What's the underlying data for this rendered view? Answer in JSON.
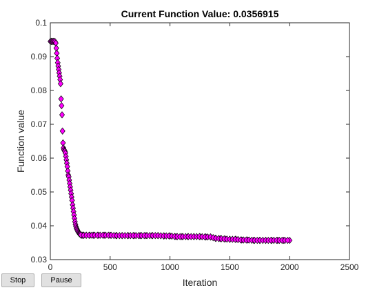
{
  "controls": {
    "stop_label": "Stop",
    "pause_label": "Pause"
  },
  "chart_data": {
    "type": "scatter",
    "title": "Current Function Value: 0.0356915",
    "xlabel": "Iteration",
    "ylabel": "Function value",
    "xlim": [
      0,
      2500
    ],
    "ylim": [
      0.03,
      0.1
    ],
    "xticks": [
      "0",
      "500",
      "1000",
      "1500",
      "2000",
      "2500"
    ],
    "yticks": [
      "0.03",
      "0.04",
      "0.05",
      "0.06",
      "0.07",
      "0.08",
      "0.09",
      "0.1"
    ],
    "grid": false,
    "legend": "none",
    "marker": "diamond",
    "marker_face_color": "#ff00ff",
    "marker_edge_color": "#000000",
    "x": [
      1,
      8,
      16,
      24,
      32,
      40,
      46,
      50,
      54,
      58,
      62,
      66,
      70,
      74,
      78,
      82,
      86,
      90,
      94,
      98,
      102,
      106,
      110,
      114,
      118,
      122,
      126,
      130,
      134,
      138,
      142,
      146,
      150,
      154,
      158,
      162,
      166,
      170,
      174,
      178,
      182,
      186,
      190,
      194,
      198,
      202,
      206,
      210,
      214,
      218,
      222,
      226,
      230,
      234,
      238,
      242,
      246,
      250,
      255,
      260,
      270,
      280,
      300,
      330,
      360,
      400,
      450,
      500,
      550,
      600,
      650,
      700,
      750,
      800,
      850,
      900,
      950,
      1000,
      1050,
      1100,
      1150,
      1200,
      1250,
      1300,
      1340,
      1380,
      1420,
      1460,
      1500,
      1550,
      1600,
      1650,
      1700,
      1750,
      1800,
      1850,
      1900,
      1950,
      2000
    ],
    "y": [
      0.0945,
      0.0945,
      0.0945,
      0.0945,
      0.0945,
      0.0944,
      0.094,
      0.0925,
      0.091,
      0.0895,
      0.0882,
      0.0872,
      0.0862,
      0.0852,
      0.0842,
      0.0832,
      0.082,
      0.0775,
      0.0755,
      0.0728,
      0.068,
      0.0645,
      0.063,
      0.0625,
      0.0622,
      0.062,
      0.0615,
      0.0605,
      0.0595,
      0.0585,
      0.0575,
      0.0562,
      0.055,
      0.0545,
      0.0535,
      0.0525,
      0.0515,
      0.0505,
      0.0495,
      0.0485,
      0.0475,
      0.0462,
      0.0452,
      0.0442,
      0.0432,
      0.0422,
      0.0412,
      0.0404,
      0.0398,
      0.0393,
      0.039,
      0.0387,
      0.0384,
      0.0381,
      0.0379,
      0.0377,
      0.0376,
      0.0375,
      0.0373,
      0.0372,
      0.0372,
      0.0372,
      0.0372,
      0.0372,
      0.0372,
      0.0372,
      0.0372,
      0.0372,
      0.0371,
      0.0371,
      0.0371,
      0.0371,
      0.0371,
      0.0371,
      0.0371,
      0.0371,
      0.037,
      0.037,
      0.0368,
      0.0368,
      0.0368,
      0.0368,
      0.0368,
      0.0367,
      0.0367,
      0.0363,
      0.0362,
      0.0361,
      0.036,
      0.036,
      0.0358,
      0.0358,
      0.0357,
      0.0357,
      0.0357,
      0.0357,
      0.0357,
      0.0357,
      0.0357
    ]
  }
}
